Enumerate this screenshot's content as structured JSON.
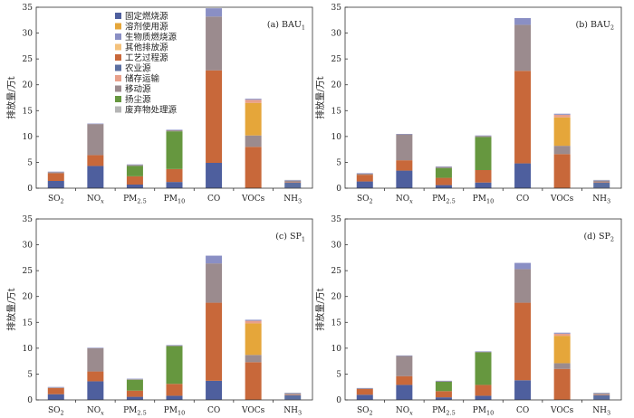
{
  "chart_data": {
    "type": "bar",
    "stacked": true,
    "ylabel": "排放量/万t",
    "ylim": [
      0,
      35
    ],
    "yticks": [
      0,
      5,
      10,
      15,
      20,
      25,
      30,
      35
    ],
    "categories": [
      "SO2",
      "NOx",
      "PM2.5",
      "PM10",
      "CO",
      "VOCs",
      "NH3"
    ],
    "category_display": [
      {
        "main": "SO",
        "sub": "2",
        "subtype": "sub"
      },
      {
        "main": "NO",
        "sub": "x",
        "subtype": "italic-sub"
      },
      {
        "main": "PM",
        "sub": "2.5",
        "subtype": "sub"
      },
      {
        "main": "PM",
        "sub": "10",
        "subtype": "sub"
      },
      {
        "main": "CO",
        "sub": "",
        "subtype": "none"
      },
      {
        "main": "VOCs",
        "sub": "",
        "subtype": "none"
      },
      {
        "main": "NH",
        "sub": "3",
        "subtype": "sub"
      }
    ],
    "legend_position": "upper-left (panel a)",
    "series": [
      {
        "name": "固定燃烧源",
        "color": "#4e5f9e"
      },
      {
        "name": "溶剂使用源",
        "color": "#e5a63a"
      },
      {
        "name": "生物质燃烧源",
        "color": "#8a8fc4"
      },
      {
        "name": "其他排放源",
        "color": "#f4c27c"
      },
      {
        "name": "工艺过程源",
        "color": "#c8683a"
      },
      {
        "name": "农业源",
        "color": "#5c6fa0"
      },
      {
        "name": "储存运输",
        "color": "#e8a08a"
      },
      {
        "name": "移动源",
        "color": "#9b8b8e"
      },
      {
        "name": "扬尘源",
        "color": "#66973f"
      },
      {
        "name": "废弃物处理源",
        "color": "#b5b5b5"
      }
    ],
    "stack_order": [
      "固定燃烧源",
      "农业源",
      "工艺过程源",
      "扬尘源",
      "移动源",
      "溶剂使用源",
      "储存运输",
      "生物质燃烧源",
      "其他排放源",
      "废弃物处理源"
    ],
    "panels": [
      {
        "label": "(a) BAU",
        "label_sub": "1",
        "values": {
          "固定燃烧源": [
            1.4,
            4.3,
            0.7,
            1.2,
            4.9,
            0.0,
            0.1
          ],
          "农业源": [
            0.0,
            0.0,
            0.0,
            0.0,
            0.0,
            0.0,
            1.0
          ],
          "工艺过程源": [
            1.5,
            2.1,
            1.6,
            2.5,
            17.9,
            8.0,
            0.1
          ],
          "扬尘源": [
            0.0,
            0.0,
            2.0,
            7.3,
            0.0,
            0.0,
            0.0
          ],
          "移动源": [
            0.2,
            6.0,
            0.2,
            0.2,
            10.4,
            2.2,
            0.2
          ],
          "溶剂使用源": [
            0.0,
            0.0,
            0.0,
            0.0,
            0.0,
            6.3,
            0.0
          ],
          "储存运输": [
            0.0,
            0.0,
            0.0,
            0.0,
            0.0,
            0.6,
            0.0
          ],
          "生物质燃烧源": [
            0.1,
            0.1,
            0.1,
            0.1,
            1.6,
            0.2,
            0.1
          ],
          "其他排放源": [
            0.0,
            0.0,
            0.0,
            0.0,
            0.0,
            0.0,
            0.0
          ],
          "废弃物处理源": [
            0.0,
            0.0,
            0.0,
            0.0,
            0.0,
            0.0,
            0.1
          ]
        }
      },
      {
        "label": "(b) BAU",
        "label_sub": "2",
        "values": {
          "固定燃烧源": [
            1.3,
            3.4,
            0.6,
            1.1,
            4.8,
            0.0,
            0.1
          ],
          "农业源": [
            0.0,
            0.0,
            0.0,
            0.0,
            0.0,
            0.0,
            1.0
          ],
          "工艺过程源": [
            1.3,
            2.0,
            1.4,
            2.4,
            17.9,
            6.6,
            0.1
          ],
          "扬尘源": [
            0.0,
            0.0,
            1.9,
            6.4,
            0.0,
            0.0,
            0.0
          ],
          "移动源": [
            0.2,
            5.0,
            0.2,
            0.2,
            8.9,
            1.6,
            0.2
          ],
          "溶剂使用源": [
            0.0,
            0.0,
            0.0,
            0.0,
            0.0,
            5.5,
            0.0
          ],
          "储存运输": [
            0.0,
            0.0,
            0.0,
            0.0,
            0.0,
            0.5,
            0.0
          ],
          "生物质燃烧源": [
            0.1,
            0.1,
            0.1,
            0.1,
            1.3,
            0.2,
            0.1
          ],
          "其他排放源": [
            0.0,
            0.0,
            0.0,
            0.0,
            0.0,
            0.0,
            0.0
          ],
          "废弃物处理源": [
            0.0,
            0.0,
            0.0,
            0.0,
            0.0,
            0.0,
            0.1
          ]
        }
      },
      {
        "label": "(c) SP",
        "label_sub": "1",
        "values": {
          "固定燃烧源": [
            1.1,
            3.6,
            0.6,
            0.8,
            3.7,
            0.0,
            0.1
          ],
          "农业源": [
            0.0,
            0.0,
            0.0,
            0.0,
            0.0,
            0.0,
            0.8
          ],
          "工艺过程源": [
            1.2,
            1.9,
            1.2,
            2.3,
            15.1,
            7.3,
            0.1
          ],
          "扬尘源": [
            0.0,
            0.0,
            2.1,
            7.3,
            0.0,
            0.0,
            0.0
          ],
          "移动源": [
            0.1,
            4.5,
            0.1,
            0.1,
            7.6,
            1.4,
            0.2
          ],
          "溶剂使用源": [
            0.0,
            0.0,
            0.0,
            0.0,
            0.0,
            6.1,
            0.0
          ],
          "储存运输": [
            0.0,
            0.0,
            0.0,
            0.0,
            0.0,
            0.5,
            0.0
          ],
          "生物质燃烧源": [
            0.1,
            0.1,
            0.1,
            0.1,
            1.5,
            0.2,
            0.1
          ],
          "其他排放源": [
            0.0,
            0.0,
            0.0,
            0.0,
            0.0,
            0.0,
            0.0
          ],
          "废弃物处理源": [
            0.0,
            0.0,
            0.0,
            0.0,
            0.0,
            0.0,
            0.1
          ]
        }
      },
      {
        "label": "(d) SP",
        "label_sub": "2",
        "values": {
          "固定燃烧源": [
            1.0,
            2.9,
            0.5,
            0.8,
            3.8,
            0.0,
            0.1
          ],
          "农业源": [
            0.0,
            0.0,
            0.0,
            0.0,
            0.0,
            0.0,
            0.8
          ],
          "工艺过程源": [
            1.1,
            1.7,
            1.2,
            2.1,
            15.0,
            6.0,
            0.1
          ],
          "扬尘源": [
            0.0,
            0.0,
            1.8,
            6.3,
            0.0,
            0.0,
            0.0
          ],
          "移动源": [
            0.1,
            3.9,
            0.1,
            0.1,
            6.5,
            1.1,
            0.2
          ],
          "溶剂使用源": [
            0.0,
            0.0,
            0.0,
            0.0,
            0.0,
            5.3,
            0.0
          ],
          "储存运输": [
            0.0,
            0.0,
            0.0,
            0.0,
            0.0,
            0.4,
            0.0
          ],
          "生物质燃烧源": [
            0.1,
            0.1,
            0.1,
            0.1,
            1.2,
            0.2,
            0.1
          ],
          "其他排放源": [
            0.0,
            0.0,
            0.0,
            0.0,
            0.0,
            0.0,
            0.0
          ],
          "废弃物处理源": [
            0.0,
            0.0,
            0.0,
            0.0,
            0.0,
            0.0,
            0.1
          ]
        }
      }
    ]
  }
}
